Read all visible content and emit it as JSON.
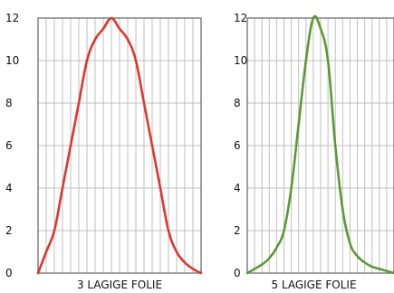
{
  "chart_data": [
    {
      "type": "line",
      "xlabel": "3 LAGIGE FOLIE",
      "ylabel": "",
      "xlim": [
        0,
        20
      ],
      "ylim": [
        0,
        12
      ],
      "yticks": [
        0,
        2,
        4,
        6,
        8,
        10,
        12
      ],
      "ytick_labels": [
        "0",
        "2",
        "4",
        "6",
        "8",
        "10",
        "12"
      ],
      "grid": true,
      "series": [
        {
          "color": "#e0352b",
          "x": [
            0,
            1,
            2,
            3,
            4,
            5,
            6,
            7,
            8,
            9,
            10,
            11,
            12,
            13,
            14,
            15,
            16,
            17,
            18,
            19,
            20
          ],
          "y": [
            0,
            1,
            2,
            4,
            6,
            8,
            10,
            11,
            11.5,
            12,
            11.5,
            11,
            10,
            8,
            6,
            4,
            2,
            1,
            0.5,
            0.2,
            0
          ]
        }
      ]
    },
    {
      "type": "line",
      "xlabel": "5 LAGIGE FOLIE",
      "ylabel": "",
      "xlim": [
        0,
        20
      ],
      "ylim": [
        0,
        12
      ],
      "yticks": [
        0,
        2,
        4,
        6,
        8,
        10,
        12
      ],
      "ytick_labels": [
        "0",
        "2",
        "4",
        "6",
        "8",
        "10",
        "12"
      ],
      "grid": true,
      "series": [
        {
          "color": "#5a9a32",
          "x": [
            0,
            1,
            2,
            3,
            4,
            5,
            6,
            7,
            8,
            9,
            10,
            11,
            12,
            13,
            14,
            15,
            16,
            17,
            18,
            19,
            20
          ],
          "y": [
            0,
            0.2,
            0.4,
            0.7,
            1.2,
            2,
            4,
            7,
            10,
            12,
            11.5,
            10,
            6,
            3,
            1.4,
            0.8,
            0.5,
            0.3,
            0.2,
            0.1,
            0
          ]
        }
      ]
    }
  ]
}
